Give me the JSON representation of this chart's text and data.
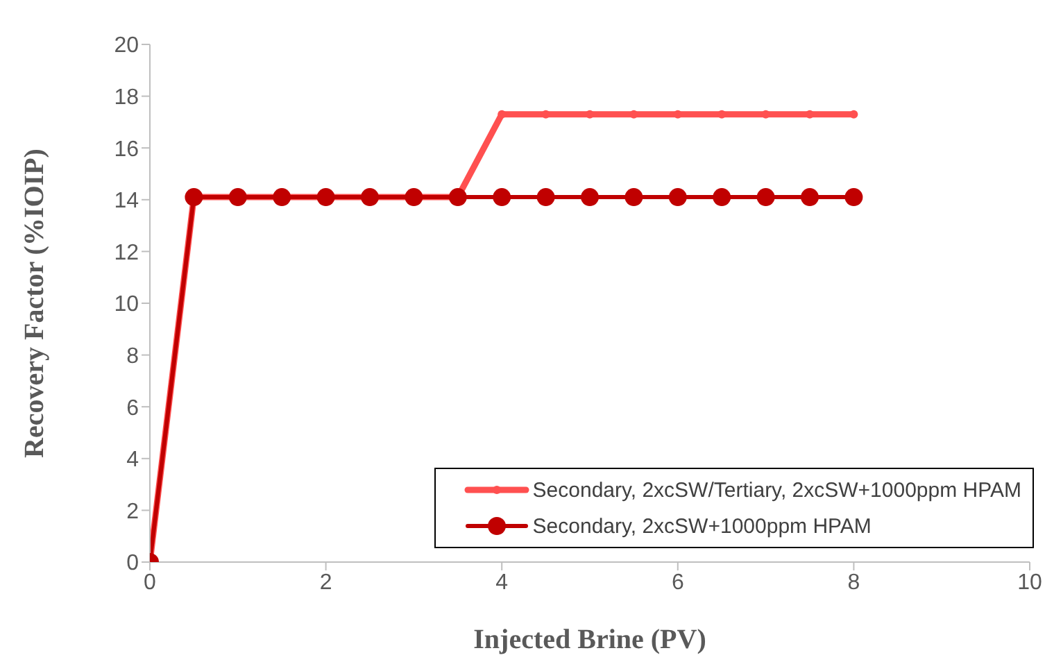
{
  "chart_data": {
    "type": "line",
    "xlabel": "Injected Brine (PV)",
    "ylabel": "Recovery Factor (%IOIP)",
    "x": [
      0,
      0.5,
      1,
      1.5,
      2,
      2.5,
      3,
      3.5,
      4,
      4.5,
      5,
      5.5,
      6,
      6.5,
      7,
      7.5,
      8
    ],
    "series": [
      {
        "name": "Secondary, 2xcSW/Tertiary, 2xcSW+1000ppm HPAM",
        "color": "#ff5050",
        "marker": "circle",
        "values": [
          0,
          14.1,
          14.1,
          14.1,
          14.1,
          14.1,
          14.1,
          14.1,
          17.3,
          17.3,
          17.3,
          17.3,
          17.3,
          17.3,
          17.3,
          17.3,
          17.3
        ]
      },
      {
        "name": "Secondary, 2xcSW+1000ppm HPAM",
        "color": "#c00000",
        "marker": "circle",
        "values": [
          0,
          14.1,
          14.1,
          14.1,
          14.1,
          14.1,
          14.1,
          14.1,
          14.1,
          14.1,
          14.1,
          14.1,
          14.1,
          14.1,
          14.1,
          14.1,
          14.1
        ]
      }
    ],
    "xlim": [
      0,
      10
    ],
    "xticks": [
      0,
      2,
      4,
      6,
      8,
      10
    ],
    "ylim": [
      0,
      20
    ],
    "yticks": [
      0,
      2,
      4,
      6,
      8,
      10,
      12,
      14,
      16,
      18,
      20
    ],
    "grid": false,
    "legend": "bottom right",
    "line_style": "solid"
  }
}
